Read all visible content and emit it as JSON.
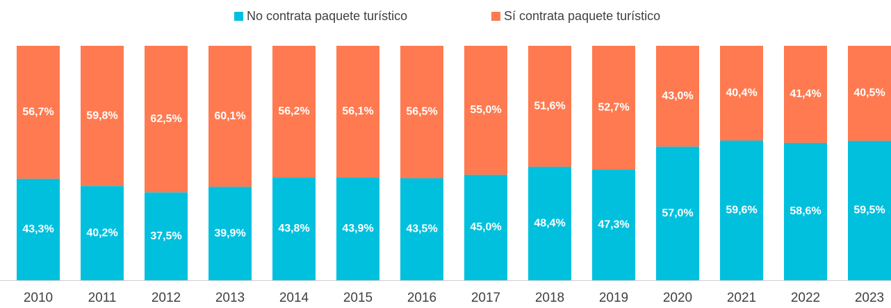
{
  "chart_data": {
    "type": "stacked_bar",
    "categories": [
      "2010",
      "2011",
      "2012",
      "2013",
      "2014",
      "2015",
      "2016",
      "2017",
      "2018",
      "2019",
      "2020",
      "2021",
      "2022",
      "2023"
    ],
    "series": [
      {
        "name": "No contrata paquete turístico",
        "color": "#00c0de",
        "values": [
          43.3,
          40.2,
          37.5,
          39.9,
          43.8,
          43.9,
          43.5,
          45.0,
          48.4,
          47.3,
          57.0,
          59.6,
          58.6,
          59.5
        ],
        "value_labels": [
          "43,3%",
          "40,2%",
          "37,5%",
          "39,9%",
          "43,8%",
          "43,9%",
          "43,5%",
          "45,0%",
          "48,4%",
          "47,3%",
          "57,0%",
          "59,6%",
          "58,6%",
          "59,5%"
        ]
      },
      {
        "name": "Sí contrata paquete turístico",
        "color": "#ff7a50",
        "values": [
          56.7,
          59.8,
          62.5,
          60.1,
          56.2,
          56.1,
          56.5,
          55.0,
          51.6,
          52.7,
          43.0,
          40.4,
          41.4,
          40.5
        ],
        "value_labels": [
          "56,7%",
          "59,8%",
          "62,5%",
          "60,1%",
          "56,2%",
          "56,1%",
          "56,5%",
          "55,0%",
          "51,6%",
          "52,7%",
          "43,0%",
          "40,4%",
          "41,4%",
          "40,5%"
        ]
      }
    ],
    "ylim": [
      0,
      100
    ],
    "legend": "top"
  }
}
